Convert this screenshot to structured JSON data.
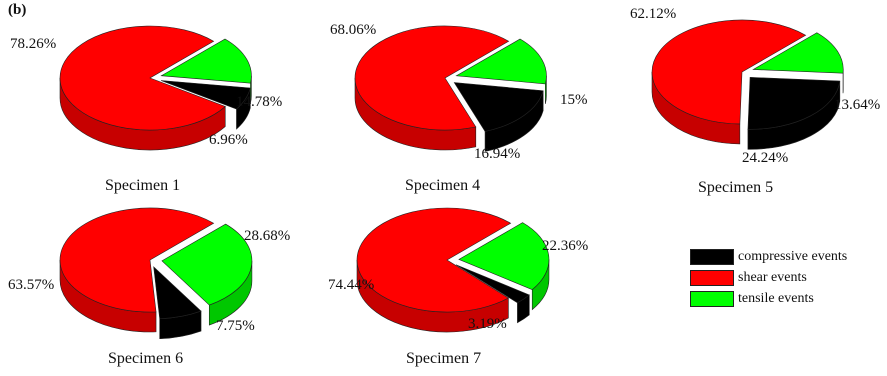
{
  "panel_label": "(b)",
  "legend": [
    {
      "label": "compressive events",
      "color": "#000000"
    },
    {
      "label": "shear events",
      "color": "#ff0000"
    },
    {
      "label": "tensile events",
      "color": "#00ff00"
    }
  ],
  "chart_data": [
    {
      "type": "pie",
      "title": "Specimen 1",
      "labels": [
        "compressive events",
        "shear events",
        "tensile events"
      ],
      "values": [
        6.96,
        78.26,
        14.78
      ],
      "value_labels": [
        "6.96%",
        "78.26%",
        "14.78%"
      ],
      "colors": [
        "#000000",
        "#ff0000",
        "#00ff00"
      ],
      "exploded": [
        "compressive events",
        "tensile events"
      ],
      "style": "3d"
    },
    {
      "type": "pie",
      "title": "Specimen 4",
      "labels": [
        "compressive events",
        "shear events",
        "tensile events"
      ],
      "values": [
        16.94,
        68.06,
        15
      ],
      "value_labels": [
        "16.94%",
        "68.06%",
        "15%"
      ],
      "colors": [
        "#000000",
        "#ff0000",
        "#00ff00"
      ],
      "exploded": [
        "compressive events",
        "tensile events"
      ],
      "style": "3d"
    },
    {
      "type": "pie",
      "title": "Specimen 5",
      "labels": [
        "compressive events",
        "shear events",
        "tensile events"
      ],
      "values": [
        24.24,
        62.12,
        13.64
      ],
      "value_labels": [
        "24.24%",
        "62.12%",
        "13.64%"
      ],
      "colors": [
        "#000000",
        "#ff0000",
        "#00ff00"
      ],
      "exploded": [
        "compressive events",
        "tensile events"
      ],
      "style": "3d"
    },
    {
      "type": "pie",
      "title": "Specimen 6",
      "labels": [
        "compressive events",
        "shear events",
        "tensile events"
      ],
      "values": [
        7.75,
        63.57,
        28.68
      ],
      "value_labels": [
        "7.75%",
        "63.57%",
        "28.68%"
      ],
      "colors": [
        "#000000",
        "#ff0000",
        "#00ff00"
      ],
      "exploded": [
        "compressive events",
        "tensile events"
      ],
      "style": "3d"
    },
    {
      "type": "pie",
      "title": "Specimen 7",
      "labels": [
        "compressive events",
        "shear events",
        "tensile events"
      ],
      "values": [
        3.19,
        74.44,
        22.36
      ],
      "value_labels": [
        "3.19%",
        "74.44%",
        "22.36%"
      ],
      "colors": [
        "#000000",
        "#ff0000",
        "#00ff00"
      ],
      "exploded": [
        "compressive events",
        "tensile events"
      ],
      "style": "3d"
    }
  ]
}
